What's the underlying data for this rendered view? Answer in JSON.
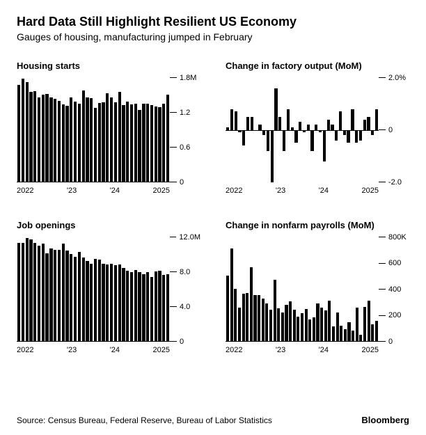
{
  "colors": {
    "bar": "#000000",
    "axis": "#000000",
    "bg": "#ffffff"
  },
  "header": {
    "title": "Hard Data Still Highlight Resilient US Economy",
    "subtitle": "Gauges of housing, manufacturing jumped in February"
  },
  "footer": {
    "source": "Source: Census Bureau, Federal Reserve, Bureau of Labor Statistics",
    "brand": "Bloomberg"
  },
  "x_labels": [
    "2022",
    "'23",
    "'24",
    "2025"
  ],
  "panels": {
    "housing_starts": {
      "title": "Housing starts",
      "type": "bar",
      "y": {
        "min": 0,
        "max": 1.8,
        "ticks": [
          {
            "v": 1.8,
            "l": "1.8M"
          },
          {
            "v": 1.2,
            "l": "1.2"
          },
          {
            "v": 0.6,
            "l": "0.6"
          },
          {
            "v": 0,
            "l": "0"
          }
        ]
      },
      "values": [
        1.67,
        1.78,
        1.72,
        1.55,
        1.56,
        1.45,
        1.5,
        1.52,
        1.46,
        1.43,
        1.4,
        1.34,
        1.31,
        1.45,
        1.38,
        1.35,
        1.58,
        1.45,
        1.44,
        1.27,
        1.36,
        1.37,
        1.53,
        1.46,
        1.37,
        1.55,
        1.32,
        1.38,
        1.33,
        1.35,
        1.24,
        1.35,
        1.35,
        1.32,
        1.3,
        1.29,
        1.35,
        1.5
      ]
    },
    "factory_output": {
      "title": "Change in factory output (MoM)",
      "type": "bar_diverging",
      "y": {
        "min": -2.0,
        "max": 2.0,
        "ticks": [
          {
            "v": 2.0,
            "l": "2.0%"
          },
          {
            "v": 0,
            "l": "0"
          },
          {
            "v": -2.0,
            "l": "-2.0"
          }
        ]
      },
      "values": [
        0.1,
        0.8,
        0.7,
        -0.1,
        -0.6,
        0.5,
        0.5,
        0.0,
        0.2,
        -0.2,
        -0.8,
        -2.0,
        1.6,
        0.5,
        -0.8,
        0.8,
        0.1,
        -0.5,
        0.3,
        -0.1,
        0.2,
        -0.8,
        0.2,
        -0.1,
        -1.2,
        0.4,
        0.2,
        -0.4,
        0.7,
        -0.2,
        -0.5,
        0.8,
        -0.5,
        -0.4,
        0.4,
        0.5,
        -0.2,
        0.8
      ]
    },
    "job_openings": {
      "title": "Job openings",
      "type": "bar",
      "y": {
        "min": 0,
        "max": 12.0,
        "ticks": [
          {
            "v": 12.0,
            "l": "12.0M"
          },
          {
            "v": 8.0,
            "l": "8.0"
          },
          {
            "v": 4.0,
            "l": "4.0"
          },
          {
            "v": 0,
            "l": "0"
          }
        ]
      },
      "values": [
        11.3,
        11.3,
        11.9,
        11.7,
        11.3,
        11.0,
        11.2,
        10.1,
        10.7,
        10.5,
        10.5,
        11.2,
        10.4,
        10.0,
        9.7,
        10.3,
        9.6,
        9.2,
        8.9,
        9.5,
        9.4,
        8.9,
        8.8,
        8.9,
        8.7,
        8.8,
        8.4,
        8.1,
        7.9,
        8.2,
        7.9,
        7.7,
        7.9,
        7.4,
        8.0,
        8.1,
        7.6,
        7.7
      ]
    },
    "payrolls": {
      "title": "Change in nonfarm payrolls (MoM)",
      "type": "bar",
      "y": {
        "min": 0,
        "max": 800,
        "ticks": [
          {
            "v": 800,
            "l": "800K"
          },
          {
            "v": 600,
            "l": "600"
          },
          {
            "v": 400,
            "l": "400"
          },
          {
            "v": 200,
            "l": "200"
          },
          {
            "v": 0,
            "l": "0"
          }
        ]
      },
      "values": [
        504,
        714,
        398,
        254,
        364,
        370,
        568,
        352,
        350,
        324,
        290,
        239,
        472,
        248,
        217,
        278,
        303,
        240,
        184,
        210,
        246,
        165,
        182,
        290,
        256,
        236,
        310,
        108,
        216,
        118,
        88,
        144,
        78,
        255,
        44,
        261,
        307,
        125,
        151
      ]
    }
  }
}
